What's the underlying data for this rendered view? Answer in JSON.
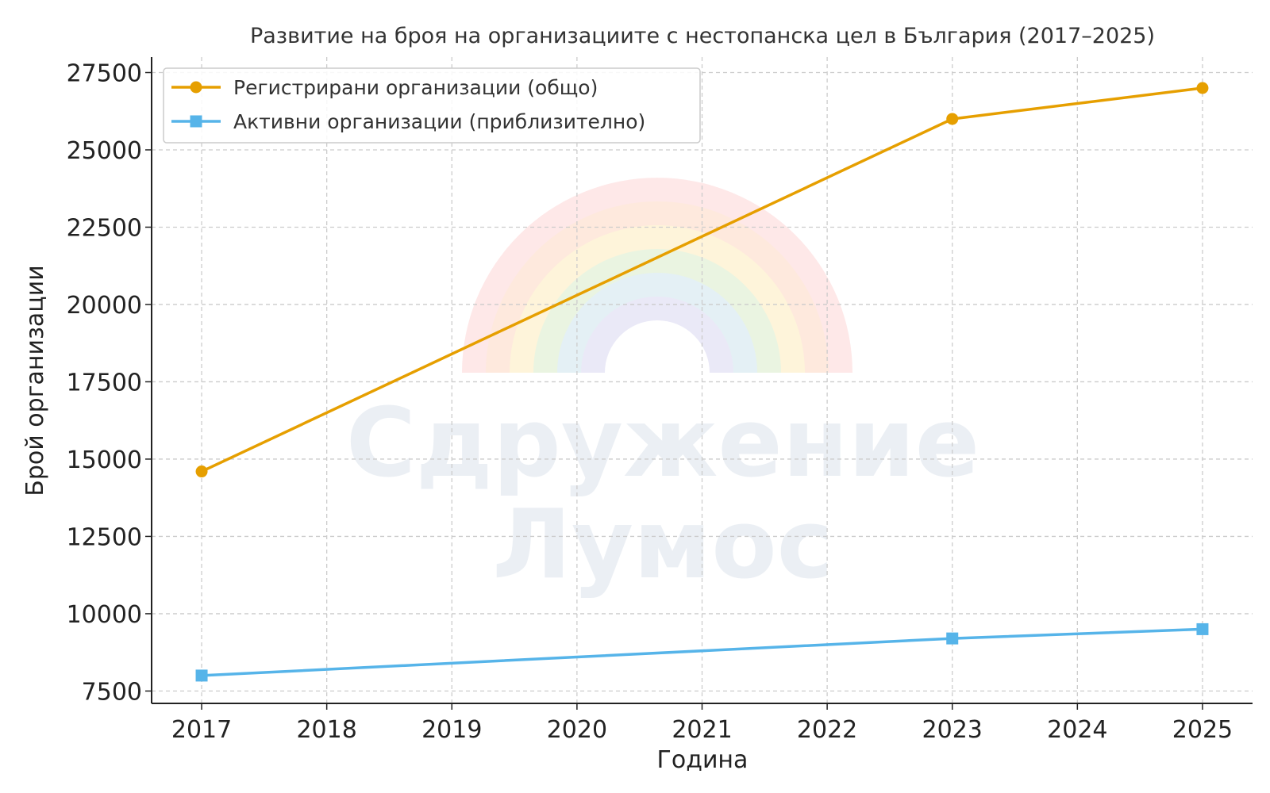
{
  "chart_data": {
    "type": "line",
    "title": "Развитие на броя на организациите с нестопанска цел в България (2017–2025)",
    "xlabel": "Година",
    "ylabel": "Брой организации",
    "x_ticks": [
      "2017",
      "2018",
      "2019",
      "2020",
      "2021",
      "2022",
      "2023",
      "2024",
      "2025"
    ],
    "y_ticks": [
      7500,
      10000,
      12500,
      15000,
      17500,
      20000,
      22500,
      25000,
      27500
    ],
    "xlim": [
      2016.6,
      2025.4
    ],
    "ylim": [
      7100,
      28000
    ],
    "grid": true,
    "legend_position": "top-left",
    "series": [
      {
        "name": "Регистрирани организации (общо)",
        "color": "#E69F00",
        "marker": "circle",
        "points": [
          {
            "x": 2017,
            "y": 14600
          },
          {
            "x": 2023,
            "y": 26000
          },
          {
            "x": 2025,
            "y": 27000
          }
        ]
      },
      {
        "name": "Активни организации (приблизително)",
        "color": "#56B4E9",
        "marker": "square",
        "points": [
          {
            "x": 2017,
            "y": 8000
          },
          {
            "x": 2023,
            "y": 9200
          },
          {
            "x": 2025,
            "y": 9500
          }
        ]
      }
    ]
  },
  "watermark": {
    "line1": "Сдружение",
    "line2": "Лумос",
    "rainbow_colors": [
      "#fde0e0",
      "#fde9d9",
      "#fdf7d8",
      "#e3f4e3",
      "#e1effb",
      "#ece7f7"
    ]
  }
}
